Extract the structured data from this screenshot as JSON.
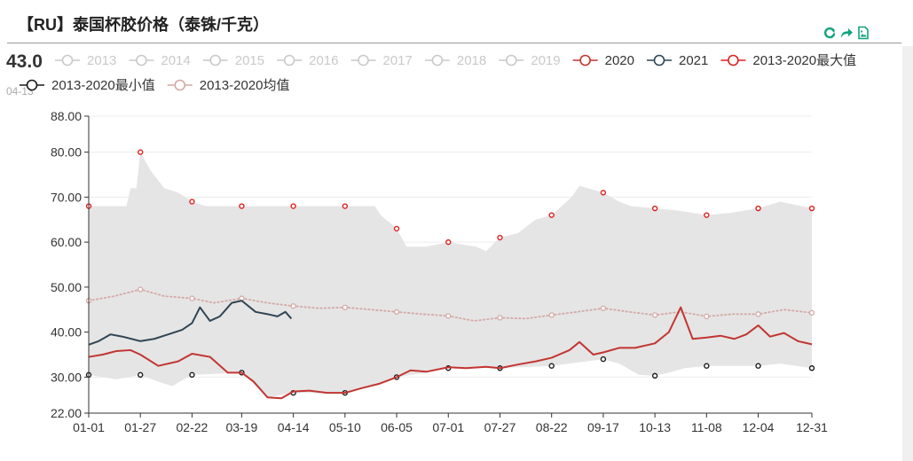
{
  "header": {
    "title": "【RU】泰国杯胶价格（泰铢/千克）"
  },
  "toolbar": [
    {
      "name": "refresh-icon",
      "color": "#11a37e"
    },
    {
      "name": "share-icon",
      "color": "#11a37e"
    },
    {
      "name": "save-image-icon",
      "color": "#11a37e"
    }
  ],
  "readout": {
    "value": "43.0",
    "date": "04-13"
  },
  "chart_data": {
    "type": "line",
    "ylim": [
      22,
      88
    ],
    "y_ticks": [
      "88.00",
      "80.00",
      "70.00",
      "60.00",
      "50.00",
      "40.00",
      "30.00",
      "22.00"
    ],
    "y_tick_values": [
      88,
      80,
      70,
      60,
      50,
      40,
      30,
      22
    ],
    "x_ticks": [
      "01-01",
      "01-27",
      "02-22",
      "03-19",
      "04-14",
      "05-10",
      "06-05",
      "07-01",
      "07-27",
      "08-22",
      "09-17",
      "10-13",
      "11-08",
      "12-04",
      "12-31"
    ],
    "legend": [
      {
        "label": "2013",
        "color": "#c9c9c9",
        "active": false
      },
      {
        "label": "2014",
        "color": "#c9c9c9",
        "active": false
      },
      {
        "label": "2015",
        "color": "#c9c9c9",
        "active": false
      },
      {
        "label": "2016",
        "color": "#c9c9c9",
        "active": false
      },
      {
        "label": "2017",
        "color": "#c9c9c9",
        "active": false
      },
      {
        "label": "2018",
        "color": "#c9c9c9",
        "active": false
      },
      {
        "label": "2019",
        "color": "#c9c9c9",
        "active": false
      },
      {
        "label": "2020",
        "color": "#c23531",
        "active": true
      },
      {
        "label": "2021",
        "color": "#2f4554",
        "active": true
      },
      {
        "label": "2013-2020最大值",
        "color": "#e02020",
        "active": true
      },
      {
        "label": "2013-2020最小值",
        "color": "#1a1a1a",
        "active": true
      },
      {
        "label": "2013-2020均值",
        "color": "#d4a9a6",
        "active": true
      }
    ],
    "series": [
      {
        "name": "2013-2020最大值",
        "color": "#e02020",
        "style": "markers",
        "values": [
          [
            "01-01",
            68
          ],
          [
            "01-27",
            80
          ],
          [
            "02-22",
            69
          ],
          [
            "03-19",
            68
          ],
          [
            "04-14",
            68
          ],
          [
            "05-10",
            68
          ],
          [
            "06-05",
            63
          ],
          [
            "07-01",
            60
          ],
          [
            "07-27",
            61
          ],
          [
            "08-22",
            66
          ],
          [
            "09-17",
            71
          ],
          [
            "10-13",
            67.5
          ],
          [
            "11-08",
            66
          ],
          [
            "12-04",
            67.5
          ],
          [
            "12-31",
            67.5
          ]
        ]
      },
      {
        "name": "2013-2020最小值",
        "color": "#1a1a1a",
        "style": "markers",
        "values": [
          [
            "01-01",
            30.5
          ],
          [
            "01-27",
            30.5
          ],
          [
            "02-22",
            30.5
          ],
          [
            "03-19",
            31
          ],
          [
            "04-14",
            26.5
          ],
          [
            "05-10",
            26.5
          ],
          [
            "06-05",
            30
          ],
          [
            "07-01",
            32
          ],
          [
            "07-27",
            32
          ],
          [
            "08-22",
            32.5
          ],
          [
            "09-17",
            34
          ],
          [
            "10-13",
            30.3
          ],
          [
            "11-08",
            32.5
          ],
          [
            "12-04",
            32.5
          ],
          [
            "12-31",
            32
          ]
        ]
      },
      {
        "name": "2013-2020均值",
        "color": "#d4a9a6",
        "style": "dotted",
        "values": [
          [
            "01-01",
            47
          ],
          [
            "01-14",
            48
          ],
          [
            "01-27",
            49.5
          ],
          [
            "02-08",
            48
          ],
          [
            "02-22",
            47.5
          ],
          [
            "03-05",
            46.5
          ],
          [
            "03-19",
            47.5
          ],
          [
            "04-01",
            46.5
          ],
          [
            "04-14",
            45.8
          ],
          [
            "04-27",
            45.3
          ],
          [
            "05-10",
            45.5
          ],
          [
            "05-23",
            45
          ],
          [
            "06-05",
            44.5
          ],
          [
            "06-18",
            44
          ],
          [
            "07-01",
            43.6
          ],
          [
            "07-14",
            42.5
          ],
          [
            "07-27",
            43.2
          ],
          [
            "08-09",
            43
          ],
          [
            "08-22",
            43.8
          ],
          [
            "09-04",
            44.5
          ],
          [
            "09-17",
            45.3
          ],
          [
            "09-30",
            44.5
          ],
          [
            "10-13",
            43.8
          ],
          [
            "10-26",
            44.5
          ],
          [
            "11-08",
            43.5
          ],
          [
            "11-21",
            44
          ],
          [
            "12-04",
            44
          ],
          [
            "12-17",
            45
          ],
          [
            "12-31",
            44.3
          ]
        ]
      },
      {
        "name": "2020",
        "color": "#c23531",
        "style": "line",
        "values": [
          [
            "01-01",
            34.5
          ],
          [
            "01-08",
            35
          ],
          [
            "01-15",
            35.8
          ],
          [
            "01-22",
            36
          ],
          [
            "01-27",
            35
          ],
          [
            "02-05",
            32.5
          ],
          [
            "02-15",
            33.5
          ],
          [
            "02-22",
            35.2
          ],
          [
            "03-03",
            34.5
          ],
          [
            "03-12",
            31
          ],
          [
            "03-19",
            31
          ],
          [
            "03-25",
            29
          ],
          [
            "04-01",
            25.5
          ],
          [
            "04-08",
            25.3
          ],
          [
            "04-14",
            26.8
          ],
          [
            "04-22",
            27
          ],
          [
            "05-01",
            26.5
          ],
          [
            "05-10",
            26.5
          ],
          [
            "05-18",
            27.5
          ],
          [
            "05-27",
            28.5
          ],
          [
            "06-05",
            30
          ],
          [
            "06-12",
            31.5
          ],
          [
            "06-20",
            31.2
          ],
          [
            "07-01",
            32.2
          ],
          [
            "07-10",
            32
          ],
          [
            "07-20",
            32.3
          ],
          [
            "07-27",
            32
          ],
          [
            "08-05",
            32.8
          ],
          [
            "08-14",
            33.5
          ],
          [
            "08-22",
            34.3
          ],
          [
            "08-31",
            36
          ],
          [
            "09-05",
            37.8
          ],
          [
            "09-12",
            35
          ],
          [
            "09-17",
            35.5
          ],
          [
            "09-25",
            36.5
          ],
          [
            "10-03",
            36.5
          ],
          [
            "10-13",
            37.5
          ],
          [
            "10-20",
            40
          ],
          [
            "10-26",
            45.5
          ],
          [
            "11-01",
            38.5
          ],
          [
            "11-08",
            38.8
          ],
          [
            "11-15",
            39.2
          ],
          [
            "11-22",
            38.5
          ],
          [
            "11-28",
            39.5
          ],
          [
            "12-04",
            41.5
          ],
          [
            "12-10",
            39
          ],
          [
            "12-17",
            39.8
          ],
          [
            "12-24",
            38
          ],
          [
            "12-31",
            37.3
          ]
        ]
      },
      {
        "name": "2021",
        "color": "#2f4554",
        "style": "line",
        "values": [
          [
            "01-01",
            37.2
          ],
          [
            "01-06",
            38
          ],
          [
            "01-12",
            39.5
          ],
          [
            "01-18",
            39
          ],
          [
            "01-27",
            38
          ],
          [
            "02-03",
            38.5
          ],
          [
            "02-10",
            39.5
          ],
          [
            "02-17",
            40.5
          ],
          [
            "02-22",
            42
          ],
          [
            "02-26",
            45.5
          ],
          [
            "03-03",
            42.5
          ],
          [
            "03-08",
            43.5
          ],
          [
            "03-14",
            46.5
          ],
          [
            "03-19",
            47
          ],
          [
            "03-26",
            44.5
          ],
          [
            "04-01",
            44
          ],
          [
            "04-06",
            43.5
          ],
          [
            "04-10",
            44.5
          ],
          [
            "04-13",
            43
          ]
        ]
      }
    ],
    "band": {
      "name": "2013-2020 range",
      "color": "#e5e5e5",
      "upper": [
        [
          "01-01",
          68
        ],
        [
          "01-20",
          68
        ],
        [
          "01-22",
          72
        ],
        [
          "01-25",
          72
        ],
        [
          "01-27",
          80
        ],
        [
          "02-01",
          76
        ],
        [
          "02-08",
          72
        ],
        [
          "02-15",
          71
        ],
        [
          "02-22",
          69
        ],
        [
          "03-01",
          68
        ],
        [
          "04-14",
          68
        ],
        [
          "05-10",
          68
        ],
        [
          "05-25",
          68
        ],
        [
          "05-28",
          66
        ],
        [
          "06-05",
          63
        ],
        [
          "06-10",
          59
        ],
        [
          "06-20",
          59
        ],
        [
          "07-01",
          60
        ],
        [
          "07-15",
          59
        ],
        [
          "07-20",
          58
        ],
        [
          "07-27",
          61
        ],
        [
          "08-05",
          62
        ],
        [
          "08-14",
          65
        ],
        [
          "08-22",
          66
        ],
        [
          "09-01",
          70
        ],
        [
          "09-05",
          72.5
        ],
        [
          "09-17",
          71
        ],
        [
          "09-25",
          69
        ],
        [
          "10-01",
          68
        ],
        [
          "10-13",
          67.5
        ],
        [
          "10-25",
          67
        ],
        [
          "11-08",
          66
        ],
        [
          "11-20",
          66.5
        ],
        [
          "12-04",
          67.5
        ],
        [
          "12-15",
          69
        ],
        [
          "12-31",
          67.5
        ]
      ],
      "lower": [
        [
          "01-01",
          30.5
        ],
        [
          "01-15",
          29.5
        ],
        [
          "01-27",
          30.5
        ],
        [
          "02-05",
          29
        ],
        [
          "02-12",
          28
        ],
        [
          "02-22",
          30.5
        ],
        [
          "03-19",
          31
        ],
        [
          "03-25",
          28.5
        ],
        [
          "04-01",
          25.5
        ],
        [
          "04-14",
          26.5
        ],
        [
          "05-10",
          26.5
        ],
        [
          "05-27",
          28.5
        ],
        [
          "06-05",
          30
        ],
        [
          "06-20",
          31
        ],
        [
          "07-01",
          32
        ],
        [
          "07-27",
          32
        ],
        [
          "08-22",
          32.5
        ],
        [
          "08-31",
          33
        ],
        [
          "09-17",
          34
        ],
        [
          "09-25",
          33
        ],
        [
          "10-05",
          30.5
        ],
        [
          "10-13",
          30.3
        ],
        [
          "10-20",
          31
        ],
        [
          "10-28",
          32
        ],
        [
          "11-08",
          32.5
        ],
        [
          "12-04",
          32.5
        ],
        [
          "12-15",
          33
        ],
        [
          "12-31",
          32
        ]
      ]
    },
    "grid": true
  }
}
